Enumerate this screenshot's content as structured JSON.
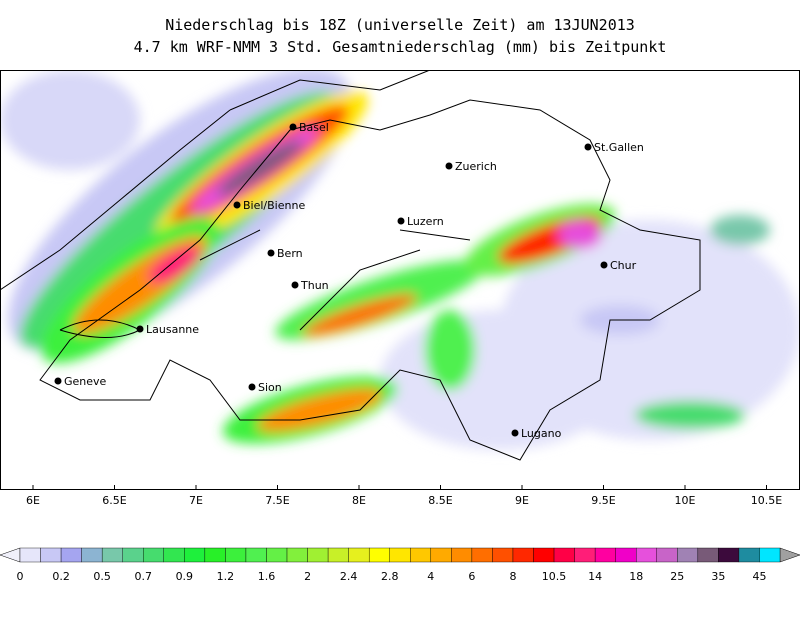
{
  "title_lines": [
    "Niederschlag bis 18Z (universelle Zeit) am 13JUN2013",
    "4.7 km WRF-NMM 3 Std. Gesamtniederschlag (mm) bis Zeitpunkt"
  ],
  "longitude_labels": [
    "6E",
    "6.5E",
    "7E",
    "7.5E",
    "8E",
    "8.5E",
    "9E",
    "9.5E",
    "10E",
    "10.5E"
  ],
  "cities": [
    "Basel",
    "Zuerich",
    "St.Gallen",
    "Biel/Bienne",
    "Luzern",
    "Bern",
    "Chur",
    "Thun",
    "Lausanne",
    "Geneve",
    "Sion",
    "Lugano"
  ],
  "colorbar": {
    "labels": [
      "0",
      "0.2",
      "0.5",
      "0.7",
      "0.9",
      "1.2",
      "1.6",
      "2",
      "2.4",
      "2.8",
      "4",
      "6",
      "8",
      "10.5",
      "14",
      "18",
      "25",
      "35",
      "45"
    ],
    "colors": [
      "#e6e6fa",
      "#c8c8f5",
      "#a5a5f0",
      "#8cb4d2",
      "#78c8aa",
      "#5ad28c",
      "#46dc6e",
      "#32e650",
      "#1ef03c",
      "#28f028",
      "#3cf03c",
      "#50f050",
      "#64f046",
      "#82f03c",
      "#a0f032",
      "#c8f028",
      "#e6f01e",
      "#ffff00",
      "#ffe600",
      "#ffc800",
      "#ffaa00",
      "#ff8c00",
      "#ff6e00",
      "#ff5000",
      "#ff2800",
      "#ff0000",
      "#ff0046",
      "#ff1e78",
      "#ff00a0",
      "#f000c8",
      "#e650dc",
      "#c864c8",
      "#a082b4",
      "#785a78",
      "#3c0a3c",
      "#1e8ca0",
      "#00e6ff"
    ]
  }
}
